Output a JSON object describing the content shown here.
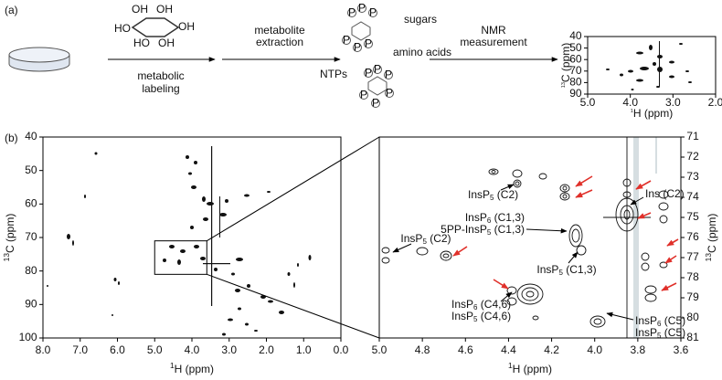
{
  "panel_a": {
    "label": "(a)",
    "inositol_groups": [
      "HO",
      "HO",
      "OH",
      "OH",
      "OH",
      "OH"
    ],
    "steps": [
      {
        "lines": [
          "metabolic",
          "labeling"
        ]
      },
      {
        "lines": [
          "metabolite",
          "extraction"
        ]
      },
      {
        "lines": [
          "NMR",
          "measurement"
        ]
      }
    ],
    "metabolites": [
      "sugars",
      "amino acids",
      "NTPs"
    ],
    "phosphate_label": "P",
    "spectrum": {
      "xlim": [
        5,
        2
      ],
      "xticks": [
        {
          "value": 5,
          "label": "5.0"
        },
        {
          "value": 4,
          "label": "4.0"
        },
        {
          "value": 3,
          "label": "3.0"
        },
        {
          "value": 2,
          "label": "2.0"
        }
      ],
      "ylim": [
        40,
        90
      ],
      "yticks": [
        40,
        50,
        60,
        70,
        80,
        90
      ],
      "x_title": {
        "sup": "1",
        "text": "H (ppm)"
      },
      "y_title": {
        "sup": "13",
        "text": "C (ppm)"
      }
    }
  },
  "panel_b": {
    "label": "(b)",
    "overview": {
      "xlim": [
        8,
        0
      ],
      "xticks": [
        {
          "value": 8,
          "label": "8.0"
        },
        {
          "value": 7,
          "label": "7.0"
        },
        {
          "value": 6,
          "label": "6.0"
        },
        {
          "value": 5,
          "label": "5.0"
        },
        {
          "value": 4,
          "label": "4.0"
        },
        {
          "value": 3,
          "label": "3.0"
        },
        {
          "value": 2,
          "label": "2.0"
        },
        {
          "value": 1,
          "label": "1.0"
        },
        {
          "value": 0,
          "label": "0.0"
        }
      ],
      "ylim": [
        40,
        100
      ],
      "yticks": [
        40,
        50,
        60,
        70,
        80,
        90,
        100
      ],
      "x_title": {
        "sup": "1",
        "text": "H (ppm)"
      },
      "y_title": {
        "sup": "13",
        "text": "C (ppm)"
      }
    },
    "zoom": {
      "xlim": [
        5,
        3.6
      ],
      "xticks": [
        {
          "value": 5,
          "label": "5.0"
        },
        {
          "value": 4.8,
          "label": "4.8"
        },
        {
          "value": 4.6,
          "label": "4.6"
        },
        {
          "value": 4.4,
          "label": "4.4"
        },
        {
          "value": 4.2,
          "label": "4.2"
        },
        {
          "value": 4,
          "label": "4.0"
        },
        {
          "value": 3.8,
          "label": "3.8"
        },
        {
          "value": 3.6,
          "label": "3.6"
        }
      ],
      "ylim": [
        71,
        81
      ],
      "yticks": [
        71,
        72,
        73,
        74,
        75,
        76,
        77,
        78,
        79,
        80,
        81
      ],
      "x_title": {
        "sup": "1",
        "text": "H (ppm)"
      },
      "y_title": {
        "sup": "13",
        "text": "C (ppm)"
      },
      "annotations": [
        {
          "lines": [
            {
              "name": "InsP",
              "sub": "5",
              "text": " (C2)"
            }
          ]
        },
        {
          "lines": [
            {
              "text": "Ins (C2)"
            }
          ]
        },
        {
          "lines": [
            {
              "name": "InsP",
              "sub": "6",
              "text": " (C1,3)"
            },
            {
              "name": "5PP-InsP",
              "sub": "5",
              "text": " (C1,3)"
            }
          ]
        },
        {
          "lines": [
            {
              "name": "InsP",
              "sub": "5",
              "text": " (C2)"
            }
          ]
        },
        {
          "lines": [
            {
              "name": "InsP",
              "sub": "5",
              "text": " (C1,3)"
            }
          ]
        },
        {
          "lines": [
            {
              "name": "InsP",
              "sub": "6",
              "text": " (C4,6)"
            },
            {
              "name": "InsP",
              "sub": "5",
              "text": " (C4,6)"
            }
          ]
        },
        {
          "lines": [
            {
              "name": "InsP",
              "sub": "6",
              "text": " (C5)"
            },
            {
              "name": "InsP",
              "sub": "5",
              "text": " (C5)"
            }
          ]
        }
      ]
    }
  }
}
